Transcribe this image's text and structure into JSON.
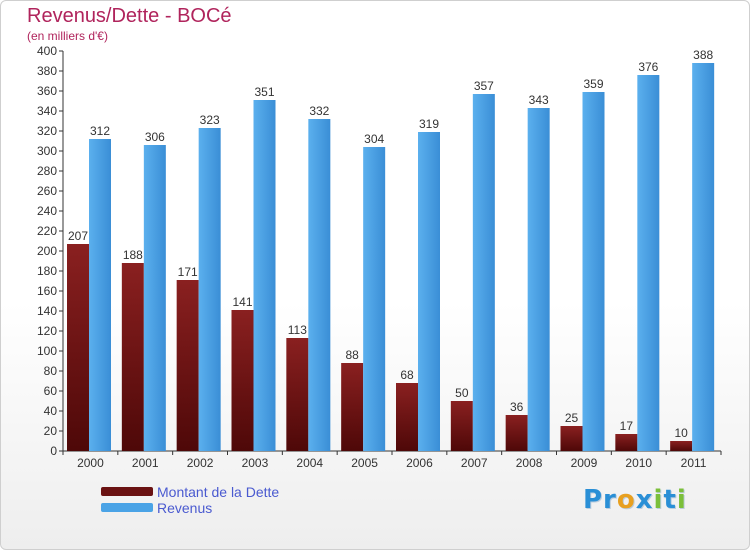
{
  "header": {
    "title": "Revenus/Dette - BOCé",
    "subtitle": "(en milliers d'€)"
  },
  "logo": {
    "text": "Proxiti"
  },
  "colors": {
    "debt": "#7a1818",
    "debt_dark": "#4e0808",
    "revenue": "#4aa3e6",
    "revenue_dark": "#2f7fc4",
    "title": "#b0245c"
  },
  "chart_data": {
    "type": "bar",
    "title": "Revenus/Dette - BOCé",
    "subtitle": "(en milliers d'€)",
    "categories": [
      "2000",
      "2001",
      "2002",
      "2003",
      "2004",
      "2005",
      "2006",
      "2007",
      "2008",
      "2009",
      "2010",
      "2011"
    ],
    "series": [
      {
        "name": "Montant de la Dette",
        "values": [
          207,
          188,
          171,
          141,
          113,
          88,
          68,
          50,
          36,
          25,
          17,
          10
        ]
      },
      {
        "name": "Revenus",
        "values": [
          312,
          306,
          323,
          351,
          332,
          304,
          319,
          357,
          343,
          359,
          376,
          388
        ]
      }
    ],
    "ylim": [
      0,
      400
    ],
    "ytick_step": 20,
    "grid": false,
    "legend": "bottom-left"
  }
}
